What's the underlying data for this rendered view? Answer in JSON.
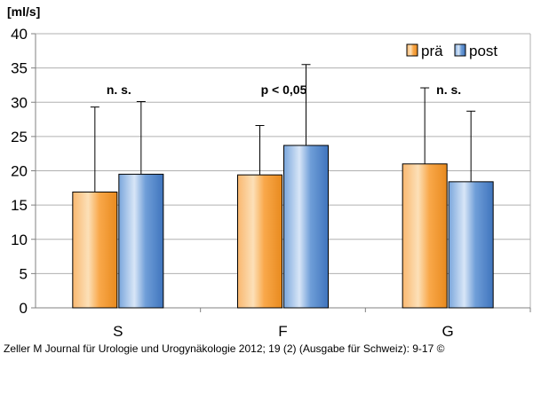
{
  "chart_data": {
    "type": "bar",
    "ylabel": "[ml/s]",
    "ylim": [
      0,
      40
    ],
    "yticks": [
      0,
      5,
      10,
      15,
      20,
      25,
      30,
      35,
      40
    ],
    "grid": true,
    "legend_position": "top-right",
    "categories": [
      "S",
      "F",
      "G"
    ],
    "series": [
      {
        "name": "prä",
        "values": [
          16.9,
          19.4,
          21.0
        ],
        "error_upper": [
          29.3,
          26.6,
          32.1
        ],
        "color": "#f7a040"
      },
      {
        "name": "post",
        "values": [
          19.5,
          23.7,
          18.4
        ],
        "error_upper": [
          30.1,
          35.5,
          28.7
        ],
        "color": "#5b8fd0"
      }
    ],
    "annotations": [
      "n. s.",
      "p < 0,05",
      "n. s."
    ]
  },
  "caption": "Zeller M Journal für Urologie und Urogynäkologie 2012; 19 (2) (Ausgabe für Schweiz): 9-17 ©"
}
